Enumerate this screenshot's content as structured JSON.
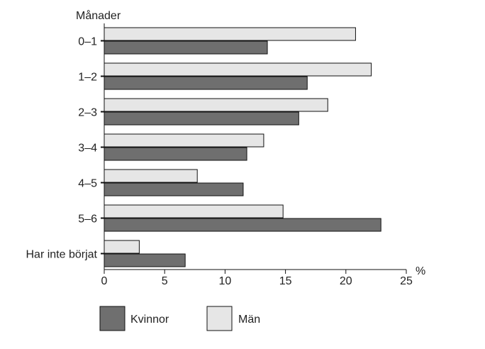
{
  "chart_data": {
    "type": "bar",
    "orientation": "horizontal",
    "ylabel": "Månader",
    "xlabel": "%",
    "categories": [
      "0–1",
      "1–2",
      "2–3",
      "3–4",
      "4–5",
      "5–6",
      "Har inte börjat"
    ],
    "series": [
      {
        "name": "Män",
        "values": [
          20.8,
          22.1,
          18.5,
          13.2,
          7.7,
          14.8,
          2.9
        ],
        "color": "#e6e6e6"
      },
      {
        "name": "Kvinnor",
        "values": [
          13.5,
          16.8,
          16.1,
          11.8,
          11.5,
          22.9,
          6.7
        ],
        "color": "#6f6f6f"
      }
    ],
    "xlim": [
      0,
      25
    ],
    "xticks": [
      0,
      5,
      10,
      15,
      20,
      25
    ],
    "grid": false,
    "legend_position": "bottom"
  },
  "legend": {
    "items": [
      {
        "label": "Kvinnor",
        "color": "#6f6f6f"
      },
      {
        "label": "Män",
        "color": "#e6e6e6"
      }
    ]
  }
}
